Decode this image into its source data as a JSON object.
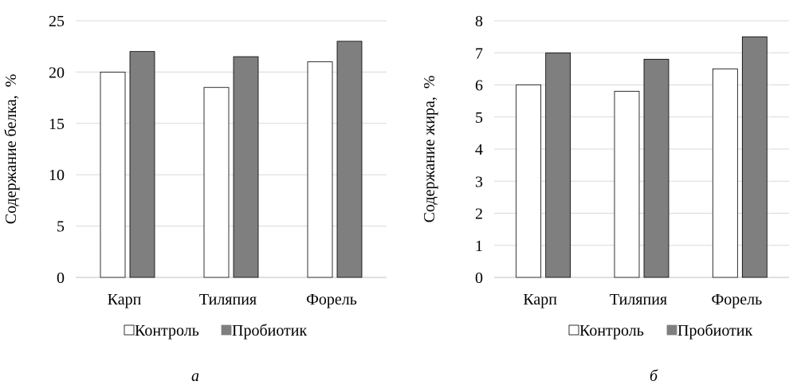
{
  "chart_data": [
    {
      "type": "bar",
      "panel_label": "а",
      "categories": [
        "Карп",
        "Тиляпия",
        "Форель"
      ],
      "series": [
        {
          "name": "Контроль",
          "values": [
            20,
            18.5,
            21
          ],
          "color": "#ffffff"
        },
        {
          "name": "Пробиотик",
          "values": [
            22,
            21.5,
            23
          ],
          "color": "#7f7f7f"
        }
      ],
      "title": "",
      "xlabel": "",
      "ylabel": "Содержание белка,  %",
      "ylim": [
        0,
        25
      ],
      "yticks": [
        0,
        5,
        10,
        15,
        20,
        25
      ],
      "grid": true,
      "legend": "bottom"
    },
    {
      "type": "bar",
      "panel_label": "б",
      "categories": [
        "Карп",
        "Тиляпия",
        "Форель"
      ],
      "series": [
        {
          "name": "Контроль",
          "values": [
            6,
            5.8,
            6.5
          ],
          "color": "#ffffff"
        },
        {
          "name": "Пробиотик",
          "values": [
            7,
            6.8,
            7.5
          ],
          "color": "#7f7f7f"
        }
      ],
      "title": "",
      "xlabel": "",
      "ylabel": "Содержание жира,  %",
      "ylim": [
        0,
        8
      ],
      "yticks": [
        0,
        1,
        2,
        3,
        4,
        5,
        6,
        7,
        8
      ],
      "grid": true,
      "legend": "bottom"
    }
  ]
}
